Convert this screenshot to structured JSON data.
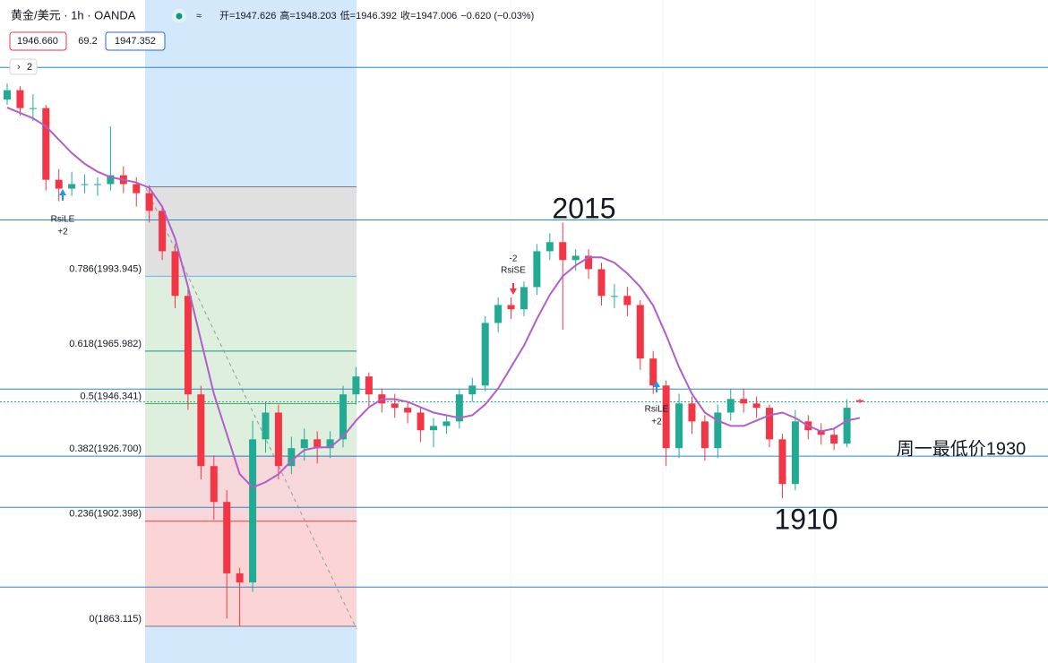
{
  "header": {
    "symbol": "黄金/美元 · 1h · OANDA",
    "ohlc": [
      {
        "label": "开=",
        "value": "1947.626"
      },
      {
        "label": "高=",
        "value": "1948.203"
      },
      {
        "label": "低=",
        "value": "1946.392"
      },
      {
        "label": "收=",
        "value": "1947.006"
      }
    ],
    "change": "−0.620 (−0.03%)",
    "sell": "1946.660",
    "spread": "69.2",
    "buy": "1947.352",
    "indicator_count": "2"
  },
  "chart_data": {
    "type": "candlestick",
    "ylim": [
      1849.4,
      2097.2
    ],
    "candles": [
      [
        2060,
        2066,
        2058,
        2063.5
      ],
      [
        2063.5,
        2065,
        2054,
        2056.8
      ],
      [
        2056.8,
        2062,
        2052,
        2056.8
      ],
      [
        2056.8,
        2058,
        2026,
        2030
      ],
      [
        2030,
        2034,
        2022,
        2026.7
      ],
      [
        2026.7,
        2033,
        2024,
        2028.4
      ],
      [
        2028.4,
        2032,
        2025,
        2028.4
      ],
      [
        2028.4,
        2031,
        2024,
        2028.4
      ],
      [
        2028.4,
        2050,
        2026,
        2031.7
      ],
      [
        2031.7,
        2035,
        2025,
        2028.4
      ],
      [
        2028.4,
        2031,
        2020,
        2025
      ],
      [
        2025,
        2028,
        2014,
        2018.4
      ],
      [
        2018.4,
        2020,
        2000,
        2003.3
      ],
      [
        2003.3,
        2006,
        1982,
        1986.6
      ],
      [
        1986.6,
        1989,
        1944,
        1949.8
      ],
      [
        1949.8,
        1953,
        1918,
        1923
      ],
      [
        1923,
        1927,
        1903,
        1909.6
      ],
      [
        1909.6,
        1914,
        1866,
        1882.9
      ],
      [
        1882.9,
        1885,
        1863.1,
        1879.5
      ],
      [
        1879.5,
        1940,
        1876,
        1933
      ],
      [
        1933,
        1947,
        1928,
        1943
      ],
      [
        1943,
        1946,
        1918,
        1923
      ],
      [
        1923,
        1934,
        1920,
        1929.7
      ],
      [
        1929.7,
        1937,
        1925,
        1933
      ],
      [
        1933,
        1936,
        1924,
        1929.7
      ],
      [
        1929.7,
        1936,
        1926,
        1933
      ],
      [
        1933,
        1953,
        1930,
        1949.8
      ],
      [
        1949.8,
        1960,
        1946,
        1956.5
      ],
      [
        1956.5,
        1958,
        1945,
        1949.8
      ],
      [
        1949.8,
        1952,
        1943,
        1946.4
      ],
      [
        1946.4,
        1950,
        1941,
        1944.8
      ],
      [
        1944.8,
        1947,
        1939,
        1943
      ],
      [
        1943,
        1945,
        1932,
        1936.4
      ],
      [
        1936.4,
        1941,
        1930,
        1938
      ],
      [
        1938,
        1942,
        1935,
        1939.7
      ],
      [
        1939.7,
        1952,
        1937,
        1949.8
      ],
      [
        1949.8,
        1956,
        1947,
        1953.1
      ],
      [
        1953.1,
        1979,
        1951,
        1976.5
      ],
      [
        1976.5,
        1986,
        1973,
        1983.2
      ],
      [
        1983.2,
        1986,
        1978,
        1981.6
      ],
      [
        1981.6,
        1992,
        1979,
        1989.9
      ],
      [
        1989.9,
        2006,
        1987,
        2003.3
      ],
      [
        2003.3,
        2010,
        2000,
        2006.7
      ],
      [
        2006.7,
        2014,
        1974,
        2000
      ],
      [
        2000,
        2004,
        1996,
        2001.6
      ],
      [
        2001.6,
        2004,
        1993,
        1996.6
      ],
      [
        1996.6,
        1999,
        1983,
        1986.6
      ],
      [
        1986.6,
        1991,
        1982,
        1986.6
      ],
      [
        1986.6,
        1990,
        1979,
        1983.2
      ],
      [
        1983.2,
        1985,
        1959,
        1963.2
      ],
      [
        1963.2,
        1966,
        1950,
        1953.1
      ],
      [
        1953.1,
        1955,
        1923,
        1929.7
      ],
      [
        1929.7,
        1950,
        1926,
        1946.4
      ],
      [
        1946.4,
        1949,
        1935,
        1939.7
      ],
      [
        1939.7,
        1942,
        1925,
        1929.7
      ],
      [
        1929.7,
        1946,
        1926,
        1943
      ],
      [
        1943,
        1952,
        1940,
        1948.1
      ],
      [
        1948.1,
        1952,
        1943,
        1946.4
      ],
      [
        1946.4,
        1949,
        1941,
        1944.8
      ],
      [
        1944.8,
        1946,
        1930,
        1933
      ],
      [
        1933,
        1935,
        1911,
        1916.3
      ],
      [
        1916.3,
        1944,
        1914,
        1939.7
      ],
      [
        1939.7,
        1942,
        1933,
        1936.4
      ],
      [
        1936.4,
        1939,
        1931,
        1934.7
      ],
      [
        1934.7,
        1937,
        1929,
        1931.4
      ],
      [
        1931.4,
        1948,
        1930,
        1944.8
      ],
      [
        1947.626,
        1948.203,
        1946.392,
        1947.006
      ]
    ],
    "up_color": "#22ab94",
    "down_color": "#f23645",
    "ma": {
      "color": "#b05fc9",
      "values": [
        2057,
        2055,
        2053,
        2050,
        2045,
        2040,
        2036,
        2033,
        2031,
        2030,
        2029,
        2027,
        2020,
        2008,
        1990,
        1970,
        1950,
        1935,
        1920,
        1915,
        1917,
        1920,
        1925,
        1929,
        1930,
        1930,
        1934,
        1940,
        1945,
        1948,
        1948,
        1947,
        1945,
        1943,
        1942,
        1941,
        1942,
        1946,
        1952,
        1960,
        1968,
        1978,
        1987,
        1994,
        1998,
        2001,
        2001,
        1999,
        1995,
        1990,
        1983,
        1972,
        1960,
        1950,
        1943,
        1940,
        1938,
        1938,
        1940,
        1942,
        1943,
        1941,
        1938,
        1936,
        1937,
        1940,
        1941
      ]
    },
    "fib": {
      "top": 2027.4,
      "levels": [
        {
          "value": 1993.945,
          "label": "0.786(1993.945)",
          "color": "#64b5f6"
        },
        {
          "value": 1965.982,
          "label": "0.618(1965.982)",
          "color": "#089981"
        },
        {
          "value": 1946.341,
          "label": "0.5(1946.341)",
          "color": "#4caf50"
        },
        {
          "value": 1926.7,
          "label": "0.382(1926.700)",
          "color": "#90a4ae"
        },
        {
          "value": 1902.398,
          "label": "0.236(1902.398)",
          "color": "#f23645"
        },
        {
          "value": 1863.115,
          "label": "0(1863.115)",
          "color": "#787b86"
        }
      ]
    },
    "hlines": {
      "color": "#2f86c9",
      "values": [
        2072,
        2015,
        1951.8,
        1926.7,
        1907.6,
        1877.8
      ]
    },
    "last_price": 1947.006,
    "annotations": [
      {
        "text": "2015",
        "color": "#2a9de0"
      },
      {
        "text": "1910",
        "color": "#2a9de0"
      },
      {
        "text": "周一最低价1930",
        "color": "#2a9de0"
      }
    ],
    "signals": [
      {
        "name": "RsiLE",
        "qty": "+2"
      },
      {
        "qty": "-2",
        "name": "RsiSE"
      },
      {
        "name": "RsiLE",
        "qty": "+2"
      }
    ]
  }
}
